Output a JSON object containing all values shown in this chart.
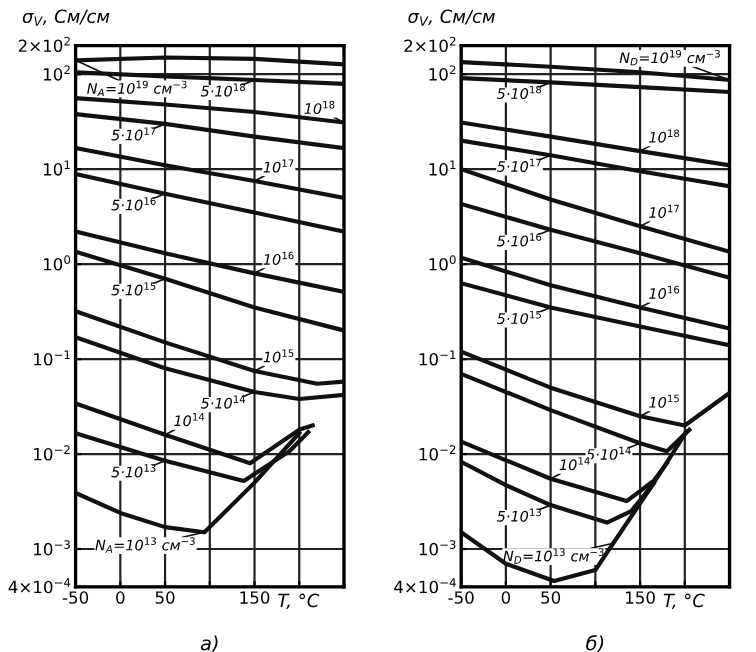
{
  "chart_data": [
    {
      "type": "line",
      "title": "а)",
      "xlabel": "T, °C",
      "ylabel": "σ$_{V}$, См/см",
      "log": "y",
      "grid": true,
      "legend": false,
      "marker": "none",
      "line_style": "solid",
      "xlim": [
        -50,
        250
      ],
      "ylim": [
        0.0004,
        200
      ],
      "xticks": [
        -50,
        0,
        50,
        {
          "value": 100,
          "label": null
        },
        150,
        {
          "value": 200,
          "label": null
        },
        {
          "value": 250,
          "label": null
        }
      ],
      "yticks": [
        {
          "value": 0.0004,
          "label": "4×10$^{−4}$"
        },
        {
          "value": 0.001,
          "label": "10$^{−3}$"
        },
        {
          "value": 0.01,
          "label": "10$^{−2}$"
        },
        {
          "value": 0.1,
          "label": "10$^{−1}$"
        },
        {
          "value": 1,
          "label": "10$^{0}$"
        },
        {
          "value": 10,
          "label": "10$^{1}$"
        },
        {
          "value": 100,
          "label": "10$^{2}$"
        },
        {
          "value": 200,
          "label": "2×10$^{2}$"
        }
      ],
      "series": [
        {
          "color": "#111111",
          "x": [
            -50,
            50,
            150,
            250
          ],
          "values": [
            140,
            150,
            145,
            127
          ]
        },
        {
          "color": "#111111",
          "x": [
            -50,
            50,
            150,
            250
          ],
          "values": [
            105,
            95,
            87,
            79
          ]
        },
        {
          "color": "#111111",
          "x": [
            -50,
            50,
            150,
            250
          ],
          "values": [
            56,
            48,
            40,
            31
          ]
        },
        {
          "color": "#111111",
          "x": [
            -50,
            50,
            150,
            250
          ],
          "values": [
            38,
            30,
            22,
            16.7
          ]
        },
        {
          "color": "#111111",
          "x": [
            -50,
            50,
            150,
            250
          ],
          "values": [
            16.7,
            11,
            7.5,
            5
          ]
        },
        {
          "color": "#111111",
          "x": [
            -50,
            50,
            150,
            250
          ],
          "values": [
            8.9,
            5.5,
            3.5,
            2.2
          ]
        },
        {
          "color": "#111111",
          "x": [
            -50,
            50,
            150,
            250
          ],
          "values": [
            2.2,
            1.3,
            0.8,
            0.51
          ]
        },
        {
          "color": "#111111",
          "x": [
            -50,
            50,
            150,
            250
          ],
          "values": [
            1.35,
            0.7,
            0.35,
            0.2
          ]
        },
        {
          "color": "#111111",
          "x": [
            -50,
            50,
            150,
            220,
            250
          ],
          "values": [
            0.32,
            0.15,
            0.075,
            0.055,
            0.058
          ]
        },
        {
          "color": "#111111",
          "x": [
            -50,
            50,
            150,
            200,
            250
          ],
          "values": [
            0.17,
            0.08,
            0.045,
            0.038,
            0.042
          ]
        },
        {
          "color": "#111111",
          "x": [
            -50,
            50,
            145,
            200,
            215
          ],
          "values": [
            0.034,
            0.016,
            0.008,
            0.018,
            0.02
          ]
        },
        {
          "color": "#111111",
          "x": [
            -50,
            50,
            138,
            189,
            210
          ],
          "values": [
            0.0166,
            0.0085,
            0.0052,
            0.0107,
            0.017
          ]
        },
        {
          "color": "#111111",
          "x": [
            -50,
            0,
            50,
            94,
            150,
            200
          ],
          "values": [
            0.0039,
            0.0024,
            0.0017,
            0.0015,
            0.005,
            0.0166
          ]
        }
      ],
      "annotations": [
        {
          "text": "N$_{A}$=10$^{19}$ см$^{−3}$",
          "x": -50,
          "y": 140
        },
        {
          "text": "5·10$^{18}$",
          "x": 150,
          "y": 87
        },
        {
          "text": "10$^{18}$",
          "x": 250,
          "y": 31
        },
        {
          "text": "5·10$^{17}$",
          "x": 50,
          "y": 30
        },
        {
          "text": "10$^{17}$",
          "x": 150,
          "y": 7.5
        },
        {
          "text": "5·10$^{16}$",
          "x": 50,
          "y": 5.5
        },
        {
          "text": "10$^{16}$",
          "x": 150,
          "y": 0.8
        },
        {
          "text": "5·10$^{15}$",
          "x": 50,
          "y": 0.7
        },
        {
          "text": "10$^{15}$",
          "x": 150,
          "y": 0.075
        },
        {
          "text": "5·10$^{14}$",
          "x": 150,
          "y": 0.045
        },
        {
          "text": "10$^{14}$",
          "x": 50,
          "y": 0.016
        },
        {
          "text": "5·10$^{13}$",
          "x": 50,
          "y": 0.0085
        },
        {
          "text": "N$_{A}$=10$^{13}$ см$^{−3}$",
          "x": 94,
          "y": 0.0015
        }
      ]
    },
    {
      "type": "line",
      "title": "б)",
      "xlabel": "T, °C",
      "ylabel": "σ$_{V}$, См/см",
      "log": "y",
      "grid": true,
      "legend": false,
      "marker": "none",
      "line_style": "solid",
      "xlim": [
        -50,
        250
      ],
      "ylim": [
        0.0004,
        200
      ],
      "xticks": [
        -50,
        0,
        50,
        {
          "value": 100,
          "label": null
        },
        150,
        {
          "value": 200,
          "label": null
        },
        {
          "value": 250,
          "label": null
        }
      ],
      "yticks": [
        {
          "value": 0.0004,
          "label": "4×10$^{−4}$"
        },
        {
          "value": 0.001,
          "label": "10$^{−3}$"
        },
        {
          "value": 0.01,
          "label": "10$^{−2}$"
        },
        {
          "value": 0.1,
          "label": "10$^{−1}$"
        },
        {
          "value": 1,
          "label": "10$^{0}$"
        },
        {
          "value": 10,
          "label": "10$^{1}$"
        },
        {
          "value": 100,
          "label": "10$^{2}$"
        },
        {
          "value": 200,
          "label": "2×10$^{2}$"
        }
      ],
      "series": [
        {
          "color": "#111111",
          "x": [
            -50,
            50,
            150,
            250
          ],
          "values": [
            134,
            120,
            105,
            87
          ]
        },
        {
          "color": "#111111",
          "x": [
            -50,
            50,
            150,
            250
          ],
          "values": [
            91,
            82,
            73,
            65
          ]
        },
        {
          "color": "#111111",
          "x": [
            -50,
            50,
            150,
            250
          ],
          "values": [
            31,
            22,
            15.5,
            11
          ]
        },
        {
          "color": "#111111",
          "x": [
            -50,
            50,
            150,
            250
          ],
          "values": [
            20,
            14,
            9.5,
            6.6
          ]
        },
        {
          "color": "#111111",
          "x": [
            -50,
            50,
            150,
            250
          ],
          "values": [
            10,
            4.8,
            2.5,
            1.35
          ]
        },
        {
          "color": "#111111",
          "x": [
            -50,
            50,
            150,
            250
          ],
          "values": [
            4.3,
            2.3,
            1.3,
            0.72
          ]
        },
        {
          "color": "#111111",
          "x": [
            -50,
            50,
            150,
            250
          ],
          "values": [
            1.17,
            0.6,
            0.35,
            0.21
          ]
        },
        {
          "color": "#111111",
          "x": [
            -50,
            50,
            150,
            250
          ],
          "values": [
            0.63,
            0.35,
            0.22,
            0.14
          ]
        },
        {
          "color": "#111111",
          "x": [
            -50,
            50,
            150,
            200,
            250
          ],
          "values": [
            0.12,
            0.05,
            0.025,
            0.02,
            0.044
          ]
        },
        {
          "color": "#111111",
          "x": [
            -50,
            50,
            150,
            180,
            205
          ],
          "values": [
            0.07,
            0.029,
            0.013,
            0.0107,
            0.018
          ]
        },
        {
          "color": "#111111",
          "x": [
            -50,
            50,
            135,
            165,
            180
          ],
          "values": [
            0.0135,
            0.0055,
            0.0032,
            0.0052,
            0.008
          ]
        },
        {
          "color": "#111111",
          "x": [
            -50,
            0,
            50,
            113,
            140,
            165
          ],
          "values": [
            0.0083,
            0.0047,
            0.0029,
            0.0019,
            0.0025,
            0.0049
          ]
        },
        {
          "color": "#111111",
          "x": [
            -50,
            0,
            54,
            100,
            120,
            165,
            202
          ],
          "values": [
            0.0015,
            0.0007,
            0.00046,
            0.0006,
            0.00115,
            0.0049,
            0.0173
          ]
        }
      ],
      "annotations": [
        {
          "text": "N$_{D}$=10$^{19}$ см$^{−3}$",
          "x": 250,
          "y": 87
        },
        {
          "text": "5·10$^{18}$",
          "x": 50,
          "y": 82
        },
        {
          "text": "10$^{18}$",
          "x": 150,
          "y": 15.5
        },
        {
          "text": "5·10$^{17}$",
          "x": 50,
          "y": 14
        },
        {
          "text": "10$^{17}$",
          "x": 150,
          "y": 2.5
        },
        {
          "text": "5·10$^{16}$",
          "x": 50,
          "y": 2.3
        },
        {
          "text": "10$^{16}$",
          "x": 150,
          "y": 0.35
        },
        {
          "text": "5·10$^{15}$",
          "x": 50,
          "y": 0.35
        },
        {
          "text": "10$^{15}$",
          "x": 150,
          "y": 0.025
        },
        {
          "text": "5·10$^{14}$",
          "x": 150,
          "y": 0.013
        },
        {
          "text": "10$^{14}$",
          "x": 50,
          "y": 0.0055
        },
        {
          "text": "5·10$^{13}$",
          "x": 50,
          "y": 0.0029
        },
        {
          "text": "N$_{D}$=10$^{13}$ см$^{−3}$",
          "x": 120,
          "y": 0.00115
        }
      ]
    }
  ]
}
